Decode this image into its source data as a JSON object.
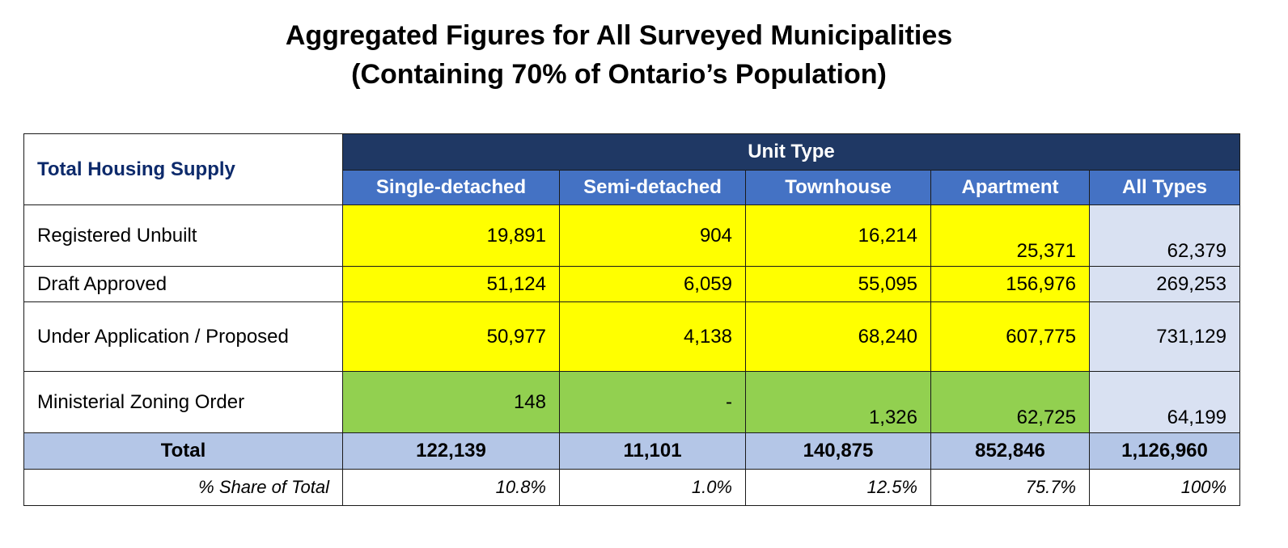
{
  "title": {
    "line1": "Aggregated Figures for All Surveyed Municipalities",
    "line2": "(Containing 70% of Ontario’s Population)"
  },
  "table": {
    "corner_label": "Total Housing Supply",
    "group_header": "Unit Type",
    "columns": [
      "Single-detached",
      "Semi-detached",
      "Townhouse",
      "Apartment",
      "All Types"
    ],
    "rows": [
      {
        "label": "Registered Unbuilt",
        "values": [
          "19,891",
          "904",
          "16,214",
          "25,371",
          "62,379"
        ]
      },
      {
        "label": "Draft Approved",
        "values": [
          "51,124",
          "6,059",
          "55,095",
          "156,976",
          "269,253"
        ]
      },
      {
        "label": "Under Application / Proposed",
        "values": [
          "50,977",
          "4,138",
          "68,240",
          "607,775",
          "731,129"
        ]
      },
      {
        "label": "Ministerial Zoning Order",
        "values": [
          "148",
          "-",
          "1,326",
          "62,725",
          "64,199"
        ]
      }
    ],
    "total": {
      "label": "Total",
      "values": [
        "122,139",
        "11,101",
        "140,875",
        "852,846",
        "1,126,960"
      ]
    },
    "share": {
      "label": "% Share of Total",
      "values": [
        "10.8%",
        "1.0%",
        "12.5%",
        "75.7%",
        "100%"
      ]
    }
  },
  "colors": {
    "header_dark": "#1f3864",
    "header_blue": "#4472c4",
    "highlight_yellow": "#ffff00",
    "highlight_green": "#92d050",
    "all_types_fill": "#d9e1f2",
    "total_fill": "#b4c6e7"
  }
}
